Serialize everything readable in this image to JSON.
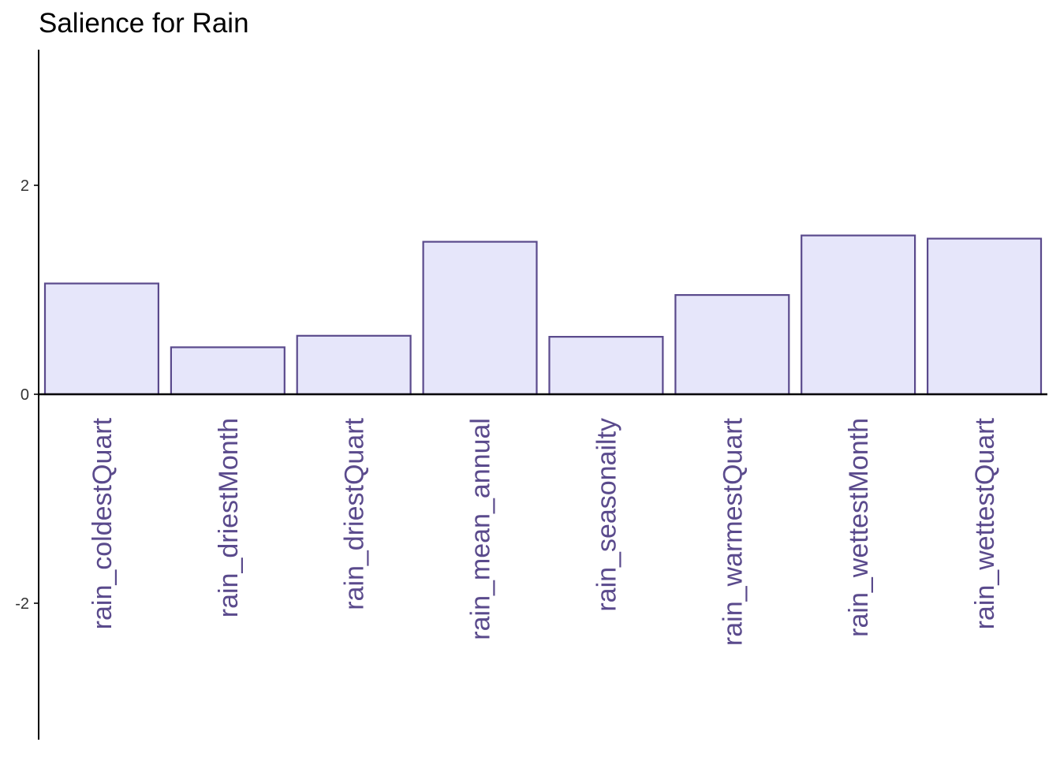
{
  "chart_data": {
    "type": "bar",
    "title": "Salience for Rain",
    "xlabel": "",
    "ylabel": "",
    "categories": [
      "rain_coldestQuart",
      "rain_driestMonth",
      "rain_driestQuart",
      "rain_mean_annual",
      "rain_seasonailty",
      "rain_warmestQuart",
      "rain_wettestMonth",
      "rain_wettestQuart"
    ],
    "values": [
      1.06,
      0.45,
      0.56,
      1.46,
      0.55,
      0.95,
      1.52,
      1.49
    ],
    "ylim": [
      -3.3,
      3.3
    ],
    "yticks": [
      -2,
      0,
      2
    ],
    "ytick_labels": [
      "-2",
      "0",
      "2"
    ],
    "grid": false,
    "legend": "none",
    "colors": {
      "bar_fill": "#e6e6fa",
      "bar_stroke": "#5a4a8c",
      "category_label": "#5a4a8c",
      "axis": "#000000",
      "tick_label": "#333333"
    }
  }
}
